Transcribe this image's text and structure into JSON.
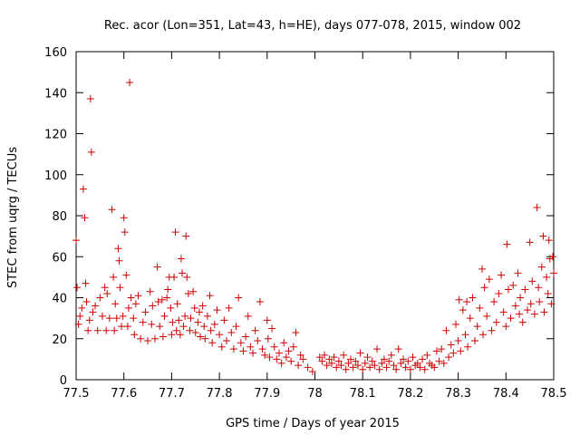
{
  "chart_data": {
    "type": "scatter",
    "title": "Rec. acor (Lon=351, Lat=43, h=HE), days 077-078, 2015, window 002",
    "xlabel": "GPS time / Days of year 2015",
    "ylabel": "STEC from uqrg / TECUs",
    "xlim": [
      77.5,
      78.5
    ],
    "ylim": [
      0,
      160
    ],
    "xticks": [
      "77.5",
      "77.6",
      "77.7",
      "77.8",
      "77.9",
      "78",
      "78.1",
      "78.2",
      "78.3",
      "78.4",
      "78.5"
    ],
    "yticks": [
      "0",
      "20",
      "40",
      "60",
      "80",
      "100",
      "120",
      "140",
      "160"
    ],
    "marker": "+",
    "marker_color": "#cc0000",
    "grid": false,
    "series": [
      {
        "name": "STEC",
        "points": [
          [
            77.5,
            68
          ],
          [
            77.502,
            45
          ],
          [
            77.505,
            27
          ],
          [
            77.508,
            31
          ],
          [
            77.512,
            35
          ],
          [
            77.515,
            93
          ],
          [
            77.518,
            79
          ],
          [
            77.52,
            47
          ],
          [
            77.522,
            38
          ],
          [
            77.525,
            24
          ],
          [
            77.528,
            29
          ],
          [
            77.53,
            137
          ],
          [
            77.532,
            111
          ],
          [
            77.535,
            33
          ],
          [
            77.54,
            36
          ],
          [
            77.545,
            24
          ],
          [
            77.55,
            40
          ],
          [
            77.555,
            31
          ],
          [
            77.56,
            45
          ],
          [
            77.563,
            24
          ],
          [
            77.565,
            42
          ],
          [
            77.57,
            30
          ],
          [
            77.575,
            83
          ],
          [
            77.578,
            50
          ],
          [
            77.58,
            24
          ],
          [
            77.582,
            37
          ],
          [
            77.585,
            30
          ],
          [
            77.588,
            64
          ],
          [
            77.59,
            58
          ],
          [
            77.592,
            45
          ],
          [
            77.595,
            26
          ],
          [
            77.598,
            31
          ],
          [
            77.6,
            79
          ],
          [
            77.602,
            72
          ],
          [
            77.605,
            51
          ],
          [
            77.608,
            26
          ],
          [
            77.61,
            35
          ],
          [
            77.612,
            145
          ],
          [
            77.615,
            40
          ],
          [
            77.62,
            30
          ],
          [
            77.622,
            22
          ],
          [
            77.625,
            37
          ],
          [
            77.63,
            41
          ],
          [
            77.635,
            20
          ],
          [
            77.64,
            28
          ],
          [
            77.645,
            33
          ],
          [
            77.65,
            19
          ],
          [
            77.655,
            43
          ],
          [
            77.658,
            27
          ],
          [
            77.66,
            36
          ],
          [
            77.665,
            20
          ],
          [
            77.67,
            55
          ],
          [
            77.672,
            38
          ],
          [
            77.675,
            26
          ],
          [
            77.68,
            39
          ],
          [
            77.682,
            21
          ],
          [
            77.685,
            31
          ],
          [
            77.69,
            40
          ],
          [
            77.692,
            44
          ],
          [
            77.695,
            50
          ],
          [
            77.698,
            35
          ],
          [
            77.7,
            22
          ],
          [
            77.702,
            28
          ],
          [
            77.705,
            50
          ],
          [
            77.708,
            72
          ],
          [
            77.71,
            24
          ],
          [
            77.712,
            37
          ],
          [
            77.715,
            29
          ],
          [
            77.718,
            22
          ],
          [
            77.72,
            59
          ],
          [
            77.722,
            52
          ],
          [
            77.725,
            26
          ],
          [
            77.728,
            31
          ],
          [
            77.73,
            70
          ],
          [
            77.732,
            50
          ],
          [
            77.735,
            42
          ],
          [
            77.738,
            24
          ],
          [
            77.74,
            30
          ],
          [
            77.745,
            43
          ],
          [
            77.748,
            35
          ],
          [
            77.75,
            23
          ],
          [
            77.755,
            28
          ],
          [
            77.758,
            33
          ],
          [
            77.76,
            21
          ],
          [
            77.765,
            36
          ],
          [
            77.768,
            26
          ],
          [
            77.77,
            20
          ],
          [
            77.775,
            31
          ],
          [
            77.78,
            41
          ],
          [
            77.782,
            24
          ],
          [
            77.785,
            18
          ],
          [
            77.79,
            27
          ],
          [
            77.795,
            34
          ],
          [
            77.8,
            22
          ],
          [
            77.805,
            16
          ],
          [
            77.81,
            29
          ],
          [
            77.815,
            19
          ],
          [
            77.82,
            35
          ],
          [
            77.825,
            23
          ],
          [
            77.83,
            15
          ],
          [
            77.835,
            26
          ],
          [
            77.84,
            40
          ],
          [
            77.845,
            18
          ],
          [
            77.85,
            14
          ],
          [
            77.855,
            21
          ],
          [
            77.86,
            31
          ],
          [
            77.865,
            16
          ],
          [
            77.87,
            13
          ],
          [
            77.875,
            24
          ],
          [
            77.88,
            19
          ],
          [
            77.885,
            38
          ],
          [
            77.89,
            15
          ],
          [
            77.895,
            12
          ],
          [
            77.9,
            29
          ],
          [
            77.902,
            20
          ],
          [
            77.905,
            11
          ],
          [
            77.91,
            25
          ],
          [
            77.915,
            16
          ],
          [
            77.92,
            10
          ],
          [
            77.925,
            13
          ],
          [
            77.93,
            8
          ],
          [
            77.935,
            18
          ],
          [
            77.94,
            11
          ],
          [
            77.945,
            14
          ],
          [
            77.95,
            9
          ],
          [
            77.955,
            16
          ],
          [
            77.96,
            23
          ],
          [
            77.965,
            7
          ],
          [
            77.97,
            12
          ],
          [
            77.975,
            10
          ],
          [
            77.985,
            6
          ],
          [
            77.995,
            4
          ],
          [
            78.01,
            11
          ],
          [
            78.015,
            9
          ],
          [
            78.02,
            12
          ],
          [
            78.025,
            7
          ],
          [
            78.03,
            10
          ],
          [
            78.035,
            8
          ],
          [
            78.04,
            11
          ],
          [
            78.045,
            6
          ],
          [
            78.05,
            9
          ],
          [
            78.055,
            7
          ],
          [
            78.06,
            12
          ],
          [
            78.065,
            5
          ],
          [
            78.07,
            8
          ],
          [
            78.075,
            10
          ],
          [
            78.08,
            6
          ],
          [
            78.085,
            9
          ],
          [
            78.09,
            7
          ],
          [
            78.095,
            13
          ],
          [
            78.1,
            5
          ],
          [
            78.105,
            8
          ],
          [
            78.11,
            11
          ],
          [
            78.115,
            6
          ],
          [
            78.12,
            9
          ],
          [
            78.125,
            7
          ],
          [
            78.13,
            15
          ],
          [
            78.135,
            5
          ],
          [
            78.14,
            8
          ],
          [
            78.145,
            10
          ],
          [
            78.15,
            6
          ],
          [
            78.155,
            9
          ],
          [
            78.16,
            12
          ],
          [
            78.165,
            7
          ],
          [
            78.17,
            5
          ],
          [
            78.175,
            15
          ],
          [
            78.18,
            8
          ],
          [
            78.185,
            10
          ],
          [
            78.19,
            6
          ],
          [
            78.195,
            9
          ],
          [
            78.2,
            5
          ],
          [
            78.205,
            11
          ],
          [
            78.21,
            7
          ],
          [
            78.215,
            8
          ],
          [
            78.22,
            6
          ],
          [
            78.225,
            10
          ],
          [
            78.23,
            5
          ],
          [
            78.235,
            12
          ],
          [
            78.24,
            8
          ],
          [
            78.245,
            7
          ],
          [
            78.25,
            6
          ],
          [
            78.255,
            14
          ],
          [
            78.26,
            9
          ],
          [
            78.265,
            15
          ],
          [
            78.27,
            8
          ],
          [
            78.275,
            24
          ],
          [
            78.28,
            11
          ],
          [
            78.285,
            17
          ],
          [
            78.29,
            13
          ],
          [
            78.295,
            27
          ],
          [
            78.3,
            19
          ],
          [
            78.302,
            39
          ],
          [
            78.305,
            14
          ],
          [
            78.31,
            34
          ],
          [
            78.315,
            22
          ],
          [
            78.318,
            38
          ],
          [
            78.32,
            16
          ],
          [
            78.325,
            30
          ],
          [
            78.33,
            40
          ],
          [
            78.335,
            19
          ],
          [
            78.34,
            26
          ],
          [
            78.345,
            35
          ],
          [
            78.35,
            54
          ],
          [
            78.352,
            22
          ],
          [
            78.355,
            45
          ],
          [
            78.36,
            31
          ],
          [
            78.365,
            49
          ],
          [
            78.37,
            24
          ],
          [
            78.375,
            38
          ],
          [
            78.38,
            28
          ],
          [
            78.385,
            42
          ],
          [
            78.39,
            51
          ],
          [
            78.395,
            33
          ],
          [
            78.4,
            26
          ],
          [
            78.402,
            66
          ],
          [
            78.405,
            44
          ],
          [
            78.41,
            30
          ],
          [
            78.415,
            46
          ],
          [
            78.42,
            36
          ],
          [
            78.425,
            52
          ],
          [
            78.428,
            32
          ],
          [
            78.43,
            40
          ],
          [
            78.435,
            28
          ],
          [
            78.44,
            44
          ],
          [
            78.445,
            34
          ],
          [
            78.45,
            67
          ],
          [
            78.452,
            37
          ],
          [
            78.455,
            48
          ],
          [
            78.46,
            32
          ],
          [
            78.465,
            84
          ],
          [
            78.468,
            45
          ],
          [
            78.47,
            38
          ],
          [
            78.475,
            55
          ],
          [
            78.478,
            70
          ],
          [
            78.48,
            33
          ],
          [
            78.485,
            50
          ],
          [
            78.488,
            42
          ],
          [
            78.49,
            68
          ],
          [
            78.492,
            59
          ],
          [
            78.495,
            37
          ],
          [
            78.498,
            60
          ],
          [
            78.5,
            52
          ]
        ]
      }
    ]
  }
}
